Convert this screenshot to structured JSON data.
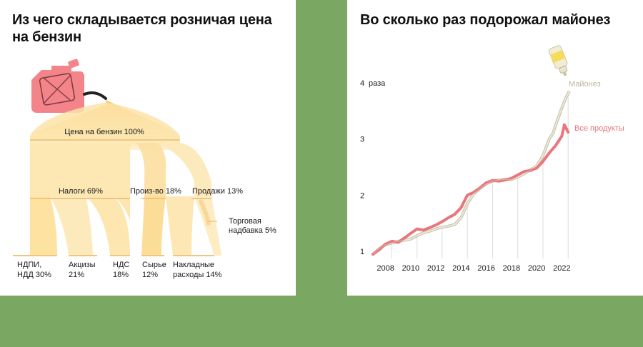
{
  "left": {
    "title_line1": "Из чего складывается розничая цена",
    "title_line2": "на бензин",
    "chart_data": {
      "type": "sankey",
      "total": {
        "label": "Цена на бензин 100%",
        "value": 100
      },
      "level1": [
        {
          "label": "Налоги 69%",
          "value": 69
        },
        {
          "label": "Произ-во 18%",
          "value": 18
        },
        {
          "label": "Продажи 13%",
          "value": 13
        }
      ],
      "markup": {
        "label_line1": "Торговая",
        "label_line2": "надбавка 5%",
        "value": 5
      },
      "level2": [
        {
          "label_line1": "НДПИ,",
          "label_line2": "НДД 30%",
          "value": 30
        },
        {
          "label_line1": "Акцизы",
          "label_line2": "21%",
          "value": 21
        },
        {
          "label_line1": "НДС",
          "label_line2": "18%",
          "value": 18
        },
        {
          "label_line1": "Сырье",
          "label_line2": "12%",
          "value": 12
        },
        {
          "label_line1": "Накладные",
          "label_line2": "расходы 14%",
          "value": 14
        }
      ],
      "colors": {
        "canister": "#f2848a",
        "flow": "#fde9b8",
        "flow_dark": "#f9d38a"
      }
    }
  },
  "right": {
    "title": "Во сколько раз подорожал майонез",
    "chart_data": {
      "type": "line",
      "y_unit": "раза",
      "ylim": [
        0.9,
        4.2
      ],
      "y_ticks": [
        1,
        2,
        3,
        4
      ],
      "xlim": [
        2007,
        2023
      ],
      "x_ticks": [
        2008,
        2010,
        2012,
        2014,
        2016,
        2018,
        2020,
        2022
      ],
      "series": [
        {
          "name": "Майонез",
          "color": "#d9d4c0",
          "x": [
            2007.0,
            2007.5,
            2008.0,
            2008.5,
            2009.0,
            2009.5,
            2010.0,
            2010.5,
            2011.0,
            2011.5,
            2012.0,
            2012.5,
            2013.0,
            2013.5,
            2014.0,
            2014.5,
            2015.0,
            2015.5,
            2016.0,
            2016.5,
            2017.0,
            2017.5,
            2018.0,
            2018.5,
            2019.0,
            2019.5,
            2020.0,
            2020.5,
            2021.0,
            2021.3,
            2021.6,
            2022.0,
            2022.3,
            2022.6
          ],
          "values": [
            0.95,
            1.05,
            1.12,
            1.15,
            1.18,
            1.2,
            1.22,
            1.28,
            1.33,
            1.36,
            1.4,
            1.43,
            1.45,
            1.48,
            1.6,
            1.85,
            2.02,
            2.12,
            2.2,
            2.25,
            2.27,
            2.28,
            2.28,
            2.32,
            2.38,
            2.45,
            2.52,
            2.7,
            3.0,
            3.1,
            3.3,
            3.55,
            3.72,
            3.85
          ]
        },
        {
          "name": "Все продукты",
          "color": "#e9767c",
          "x": [
            2007.0,
            2007.5,
            2008.0,
            2008.5,
            2009.0,
            2009.5,
            2010.0,
            2010.5,
            2011.0,
            2011.5,
            2012.0,
            2012.5,
            2013.0,
            2013.5,
            2014.0,
            2014.5,
            2015.0,
            2015.5,
            2016.0,
            2016.5,
            2017.0,
            2017.5,
            2018.0,
            2018.5,
            2019.0,
            2019.5,
            2020.0,
            2020.5,
            2021.0,
            2021.5,
            2022.0,
            2022.2,
            2022.5
          ],
          "values": [
            0.95,
            1.03,
            1.13,
            1.18,
            1.16,
            1.24,
            1.32,
            1.4,
            1.38,
            1.42,
            1.47,
            1.53,
            1.6,
            1.66,
            1.78,
            2.0,
            2.05,
            2.13,
            2.22,
            2.26,
            2.25,
            2.27,
            2.3,
            2.36,
            2.42,
            2.44,
            2.48,
            2.6,
            2.75,
            2.88,
            3.05,
            3.25,
            3.12
          ]
        }
      ]
    }
  }
}
